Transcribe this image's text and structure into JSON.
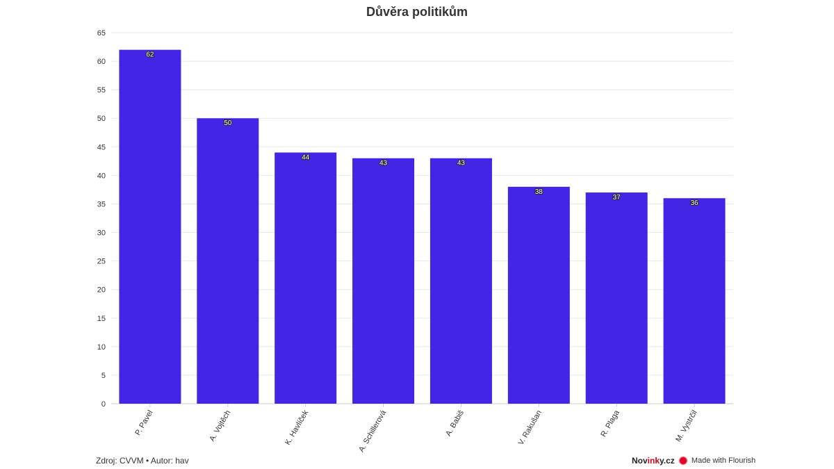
{
  "chart_data": {
    "type": "bar",
    "title": "Důvěra politikům",
    "categories": [
      "P. Pavel",
      "A. Vojtěch",
      "K. Havlíček",
      "A. Schillerová",
      "A. Babiš",
      "V. Rakušan",
      "R. Plaga",
      "M. Vystrčil"
    ],
    "values": [
      62,
      50,
      44,
      43,
      43,
      38,
      37,
      36
    ],
    "xlabel": "",
    "ylabel": "",
    "ylim": [
      0,
      65
    ],
    "yticks": [
      0,
      5,
      10,
      15,
      20,
      25,
      30,
      35,
      40,
      45,
      50,
      55,
      60,
      65
    ],
    "grid": true,
    "bar_color": "#4325e6"
  },
  "footer": {
    "source": "Zdroj: CVVM • Autor: hav",
    "brand_pre": "Nov",
    "brand_ink": "ink",
    "brand_post": "y.cz",
    "made_with": "Made with Flourish"
  }
}
